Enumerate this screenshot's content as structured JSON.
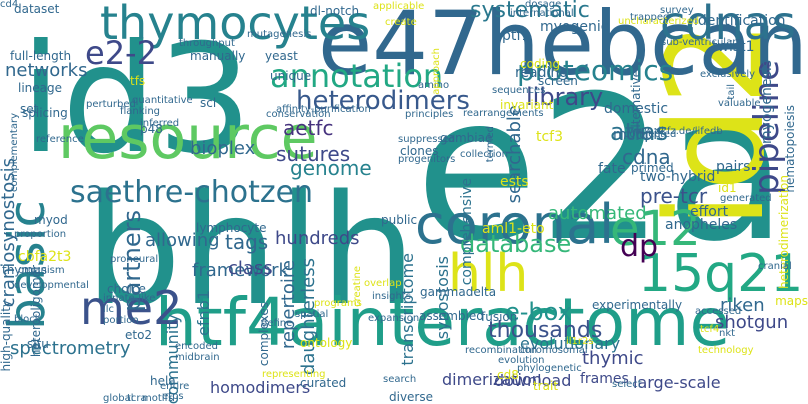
{
  "cloud": {
    "words": [
      {
        "text": "e2a",
        "color": "#21918c"
      },
      {
        "text": "id3",
        "color": "#21918c"
      },
      {
        "text": "bhlh",
        "color": "#21918c"
      },
      {
        "text": "id2",
        "color": "#dde318"
      },
      {
        "text": "e47hebcan",
        "color": "#31688e"
      },
      {
        "text": "htf4ainteractome",
        "color": "#1f9e89"
      },
      {
        "text": "resource",
        "color": "#5ec962"
      },
      {
        "text": "coronal",
        "color": "#2c728e"
      },
      {
        "text": "thymocytes",
        "color": "#26828e"
      },
      {
        "text": "cdnas",
        "color": "#2c728e"
      },
      {
        "text": "me2",
        "color": "#3b528b"
      },
      {
        "text": "e12",
        "color": "#35b779"
      },
      {
        "text": "hlh",
        "color": "#dde318"
      },
      {
        "text": "15q21",
        "color": "#22a884"
      },
      {
        "text": "basic",
        "color": "#26828e"
      },
      {
        "text": "saethre-chotzen",
        "color": "#2c728e"
      },
      {
        "text": "annotation",
        "color": "#22a884"
      },
      {
        "text": "proteomics",
        "color": "#26828e"
      },
      {
        "text": "e2-2",
        "color": "#3e4989"
      },
      {
        "text": "pipeline",
        "color": "#3e4989"
      },
      {
        "text": "dp",
        "color": "#440154"
      },
      {
        "text": "heterodimers",
        "color": "#38598c"
      },
      {
        "text": "database",
        "color": "#35b779"
      },
      {
        "text": "library",
        "color": "#3e4989"
      },
      {
        "text": "atlas",
        "color": "#2c728e"
      },
      {
        "text": "partners",
        "color": "#31688e"
      },
      {
        "text": "systematic",
        "color": "#2a788e"
      },
      {
        "text": "e-box",
        "color": "#21918c"
      },
      {
        "text": "thousands",
        "color": "#3b528b"
      },
      {
        "text": "aetfc",
        "color": "#46327e"
      },
      {
        "text": "sutures",
        "color": "#3e4989"
      },
      {
        "text": "genome",
        "color": "#26828e"
      },
      {
        "text": "craniosynostosis",
        "color": "#31688e"
      },
      {
        "text": "tags",
        "color": "#31688e"
      },
      {
        "text": "cdna",
        "color": "#31688e"
      },
      {
        "text": "searchable",
        "color": "#31688e"
      },
      {
        "text": "pre-tcr",
        "color": "#3b528b"
      },
      {
        "text": "networks",
        "color": "#31688e"
      },
      {
        "text": "bioplex",
        "color": "#31688e"
      },
      {
        "text": "framework",
        "color": "#31688e"
      },
      {
        "text": "allowing",
        "color": "#31688e"
      },
      {
        "text": "hundreds",
        "color": "#3e4989"
      },
      {
        "text": "automated",
        "color": "#35b779"
      },
      {
        "text": "thymic",
        "color": "#3e4989"
      },
      {
        "text": "riken",
        "color": "#31688e"
      },
      {
        "text": "shotgun",
        "color": "#3e4989"
      },
      {
        "text": "spectrometry",
        "color": "#2c728e"
      },
      {
        "text": "homodimers",
        "color": "#3e4989"
      },
      {
        "text": "dimerization",
        "color": "#3e4989"
      },
      {
        "text": "download",
        "color": "#3e4989"
      },
      {
        "text": "large-scale",
        "color": "#3e4989"
      },
      {
        "text": "frames",
        "color": "#3e4989"
      },
      {
        "text": "evolutionary",
        "color": "#2c728e"
      },
      {
        "text": "daughterless",
        "color": "#2c728e"
      },
      {
        "text": "repertoire",
        "color": "#31688e"
      },
      {
        "text": "transcriptome",
        "color": "#2c728e"
      },
      {
        "text": "synostosis",
        "color": "#2c728e"
      },
      {
        "text": "comprehensive",
        "color": "#2c728e"
      },
      {
        "text": "community",
        "color": "#2c728e"
      },
      {
        "text": "efnb1",
        "color": "#2c728e"
      },
      {
        "text": "class",
        "color": "#3e4989"
      },
      {
        "text": "tcf3",
        "color": "#dde318"
      },
      {
        "text": "aml1-eto",
        "color": "#dde318"
      },
      {
        "text": "ests",
        "color": "#dde318"
      },
      {
        "text": "cbfa2t3",
        "color": "#dde318"
      },
      {
        "text": "myogenic",
        "color": "#31688e"
      },
      {
        "text": "fate",
        "color": "#31688e"
      },
      {
        "text": "mudpit",
        "color": "#31688e"
      },
      {
        "text": "domestic",
        "color": "#31688e"
      },
      {
        "text": "two-hybrid",
        "color": "#31688e"
      },
      {
        "text": "reading",
        "color": "#31688e"
      },
      {
        "text": "ptf1",
        "color": "#31688e"
      },
      {
        "text": "identification",
        "color": "#31688e"
      },
      {
        "text": "twist1",
        "color": "#31688e"
      },
      {
        "text": "myogenesis",
        "color": "#31688e"
      },
      {
        "text": "hematopoiesis",
        "color": "#31688e"
      },
      {
        "text": "dataset",
        "color": "#31688e"
      },
      {
        "text": "dl-notch",
        "color": "#31688e"
      },
      {
        "text": "screen",
        "color": "#31688e"
      },
      {
        "text": "full-length",
        "color": "#31688e"
      },
      {
        "text": "manually",
        "color": "#31688e"
      },
      {
        "text": "yeast",
        "color": "#31688e"
      },
      {
        "text": "unique",
        "color": "#31688e"
      },
      {
        "text": "lineage",
        "color": "#31688e"
      },
      {
        "text": "scl",
        "color": "#31688e"
      },
      {
        "text": "p48",
        "color": "#31688e"
      },
      {
        "text": "splicing",
        "color": "#31688e"
      },
      {
        "text": "set",
        "color": "#31688e"
      },
      {
        "text": "pairs",
        "color": "#31688e"
      },
      {
        "text": "id1",
        "color": "#dde318"
      },
      {
        "text": "anopheles",
        "color": "#31688e"
      },
      {
        "text": "effort",
        "color": "#31688e"
      },
      {
        "text": "clones",
        "color": "#31688e"
      },
      {
        "text": "choice",
        "color": "#31688e"
      },
      {
        "text": "gambiae",
        "color": "#31688e"
      },
      {
        "text": "myod",
        "color": "#31688e"
      },
      {
        "text": "situ",
        "color": "#31688e"
      },
      {
        "text": "thymus",
        "color": "#31688e"
      },
      {
        "text": "lymphocyte",
        "color": "#31688e"
      },
      {
        "text": "public",
        "color": "#31688e"
      },
      {
        "text": "gammadelta",
        "color": "#31688e"
      },
      {
        "text": "fusion",
        "color": "#31688e"
      },
      {
        "text": "assembled",
        "color": "#31688e"
      },
      {
        "text": "experimentally",
        "color": "#31688e"
      },
      {
        "text": "heterodimerization",
        "color": "#dde318"
      },
      {
        "text": "maps",
        "color": "#dde318"
      },
      {
        "text": "high-quality",
        "color": "#31688e"
      },
      {
        "text": "hela",
        "color": "#31688e"
      },
      {
        "text": "eto2",
        "color": "#31688e"
      },
      {
        "text": "ontology",
        "color": "#dde318"
      },
      {
        "text": "curated",
        "color": "#31688e"
      },
      {
        "text": "diverse",
        "color": "#31688e"
      },
      {
        "text": "trait",
        "color": "#dde318"
      },
      {
        "text": "invariant",
        "color": "#dde318"
      },
      {
        "text": "coding",
        "color": "#dde318"
      },
      {
        "text": "uncharacterized",
        "color": "#dde318"
      },
      {
        "text": "www.dkfz.de/lifedb",
        "color": "#31688e"
      },
      {
        "text": "cd8",
        "color": "#dde318"
      },
      {
        "text": "tcf4",
        "color": "#dde318"
      },
      {
        "text": "heterooligomer",
        "color": "#31688e"
      },
      {
        "text": "tfs",
        "color": "#dde318"
      },
      {
        "text": "primed",
        "color": "#31688e"
      },
      {
        "text": "alternative",
        "color": "#31688e"
      },
      {
        "text": "exclusively",
        "color": "#31688e"
      },
      {
        "text": "valuable",
        "color": "#31688e"
      },
      {
        "text": "tail",
        "color": "#31688e"
      },
      {
        "text": "select",
        "color": "#31688e"
      },
      {
        "text": "nkt",
        "color": "#31688e"
      },
      {
        "text": "generated",
        "color": "#31688e"
      },
      {
        "text": "conservation",
        "color": "#31688e"
      },
      {
        "text": "affinity-purification",
        "color": "#31688e"
      },
      {
        "text": "inferred",
        "color": "#31688e"
      },
      {
        "text": "flanking",
        "color": "#31688e"
      },
      {
        "text": "perturbed",
        "color": "#31688e"
      },
      {
        "text": "complementary",
        "color": "#31688e"
      },
      {
        "text": "reference",
        "color": "#31688e"
      },
      {
        "text": "progenitors",
        "color": "#31688e"
      },
      {
        "text": "collection",
        "color": "#31688e"
      },
      {
        "text": "termed",
        "color": "#31688e"
      },
      {
        "text": "suppressed",
        "color": "#31688e"
      },
      {
        "text": "principles",
        "color": "#31688e"
      },
      {
        "text": "rearrangements",
        "color": "#31688e"
      },
      {
        "text": "sequences",
        "color": "#31688e"
      },
      {
        "text": "amino",
        "color": "#31688e"
      },
      {
        "text": "quantitative",
        "color": "#31688e"
      },
      {
        "text": "throughput",
        "color": "#31688e"
      },
      {
        "text": "mutagenesis",
        "color": "#31688e"
      },
      {
        "text": "international",
        "color": "#31688e"
      },
      {
        "text": "applicable",
        "color": "#dde318"
      },
      {
        "text": "create",
        "color": "#dde318"
      },
      {
        "text": "dosage",
        "color": "#31688e"
      },
      {
        "text": "survey",
        "color": "#31688e"
      },
      {
        "text": "connected",
        "color": "#31688e"
      },
      {
        "text": "sub-ventricular",
        "color": "#31688e"
      },
      {
        "text": "trapped",
        "color": "#31688e"
      },
      {
        "text": "proneural",
        "color": "#31688e"
      },
      {
        "text": "organism",
        "color": "#31688e"
      },
      {
        "text": "developmental",
        "color": "#31688e"
      },
      {
        "text": "innate-like",
        "color": "#31688e"
      },
      {
        "text": "ilc",
        "color": "#31688e"
      },
      {
        "text": "portion",
        "color": "#31688e"
      },
      {
        "text": "encoded",
        "color": "#31688e"
      },
      {
        "text": "midbrain",
        "color": "#31688e"
      },
      {
        "text": "define",
        "color": "#31688e"
      },
      {
        "text": "spatial",
        "color": "#31688e"
      },
      {
        "text": "insights",
        "color": "#31688e"
      },
      {
        "text": "overlap",
        "color": "#dde318"
      },
      {
        "text": "creatine",
        "color": "#dde318"
      },
      {
        "text": "complexes",
        "color": "#31688e"
      },
      {
        "text": "il1r2s",
        "color": "#dde318"
      },
      {
        "text": "accessed",
        "color": "#31688e"
      },
      {
        "text": "chromosomal",
        "color": "#31688e"
      },
      {
        "text": "cranial",
        "color": "#31688e"
      },
      {
        "text": "technology",
        "color": "#dde318"
      },
      {
        "text": "phylogenetic",
        "color": "#31688e"
      },
      {
        "text": "recombination",
        "color": "#31688e"
      },
      {
        "text": "search",
        "color": "#31688e"
      },
      {
        "text": "representing",
        "color": "#dde318"
      },
      {
        "text": "entire",
        "color": "#31688e"
      },
      {
        "text": "etps",
        "color": "#31688e"
      },
      {
        "text": "global",
        "color": "#31688e"
      },
      {
        "text": "tcra",
        "color": "#31688e"
      },
      {
        "text": "motifs",
        "color": "#31688e"
      },
      {
        "text": "block",
        "color": "#31688e"
      },
      {
        "text": "proportion",
        "color": "#31688e"
      },
      {
        "text": "programs",
        "color": "#dde318"
      },
      {
        "text": "evolution",
        "color": "#31688e"
      },
      {
        "text": "expansion",
        "color": "#31688e"
      },
      {
        "text": "approach",
        "color": "#dde318"
      },
      {
        "text": "cd4",
        "color": "#31688e"
      }
    ]
  }
}
